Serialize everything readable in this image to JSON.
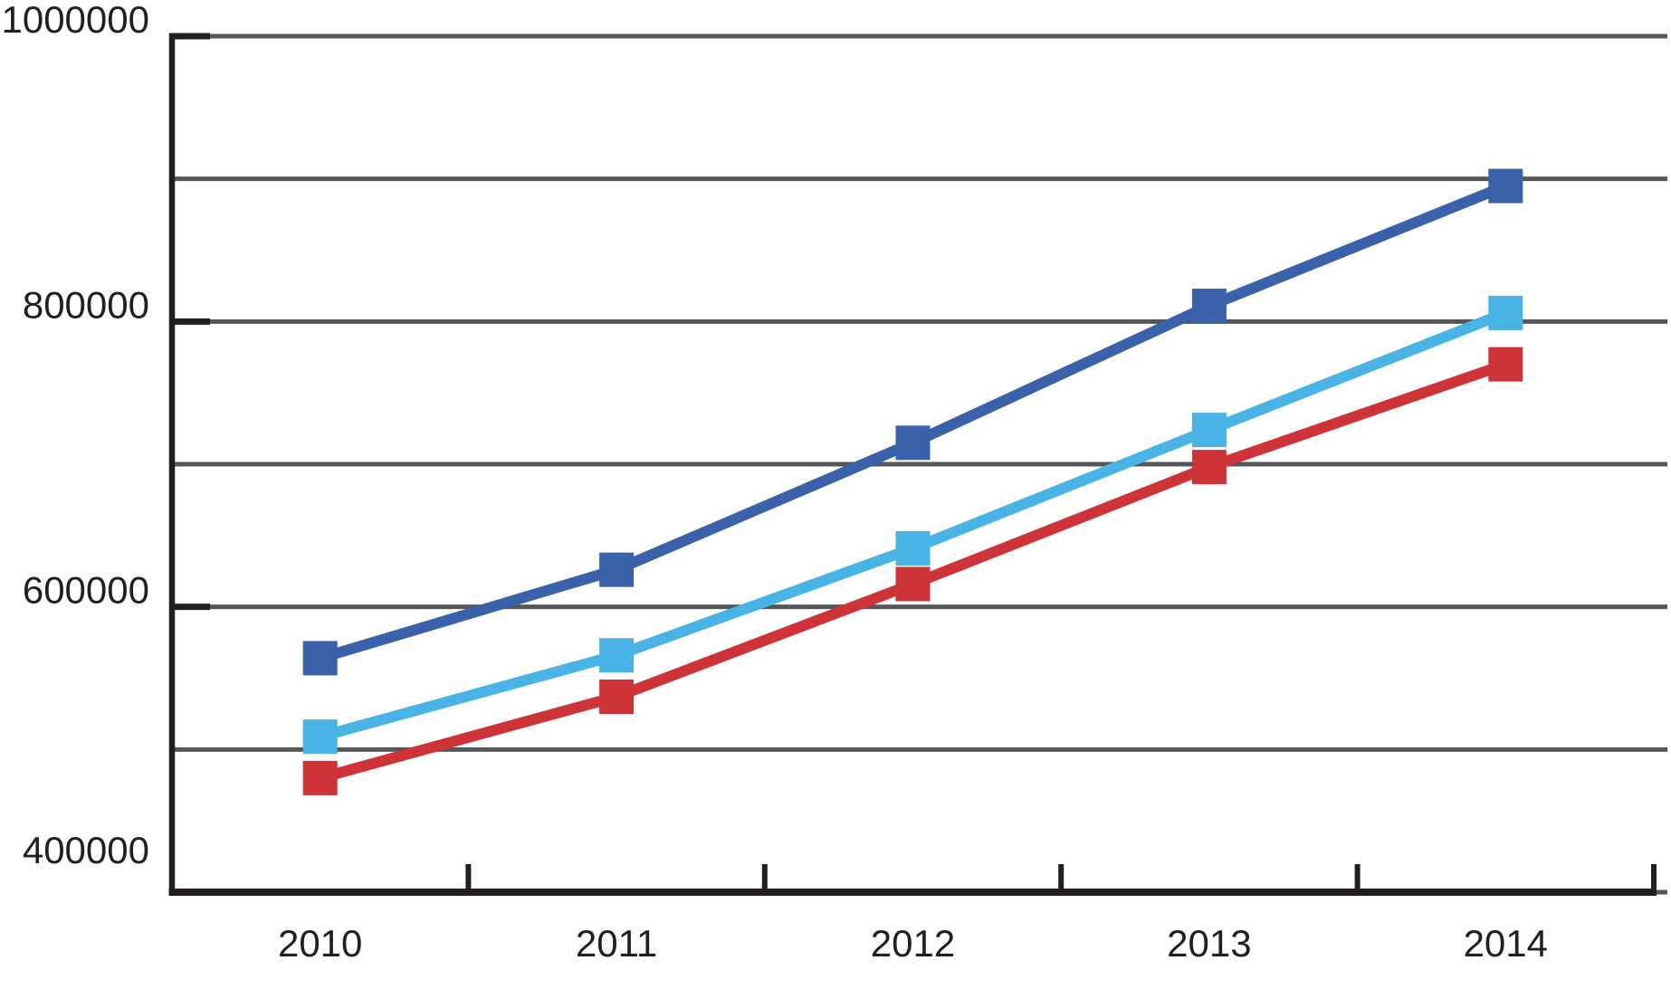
{
  "chart_data": {
    "type": "line",
    "title": "",
    "categories": [
      "2010",
      "2011",
      "2012",
      "2013",
      "2014"
    ],
    "series": [
      {
        "name": "dark-blue",
        "color": "#3a62ab",
        "marker": "square",
        "values": [
          564000,
          626000,
          715000,
          811000,
          895000
        ]
      },
      {
        "name": "light-blue",
        "color": "#4ab3e6",
        "marker": "square",
        "values": [
          509000,
          566000,
          641000,
          724000,
          806000
        ]
      },
      {
        "name": "red",
        "color": "#ce3437",
        "marker": "square",
        "values": [
          480000,
          537000,
          616000,
          698000,
          770000
        ]
      }
    ],
    "ylim": [
      400000,
      1000000
    ],
    "y_gridline_step": 100000,
    "y_labeled_tick_step": 200000,
    "y_axis_labels": [
      "1000000",
      "800000",
      "600000",
      "400000"
    ],
    "x_axis_labels": [
      "2010",
      "2011",
      "2012",
      "2013",
      "2014"
    ],
    "grid": true,
    "legend_position": "none",
    "colors": {
      "background": "#ffffff",
      "axis": "#231f20",
      "gridline": "#55565a",
      "text": "#231f20"
    }
  }
}
